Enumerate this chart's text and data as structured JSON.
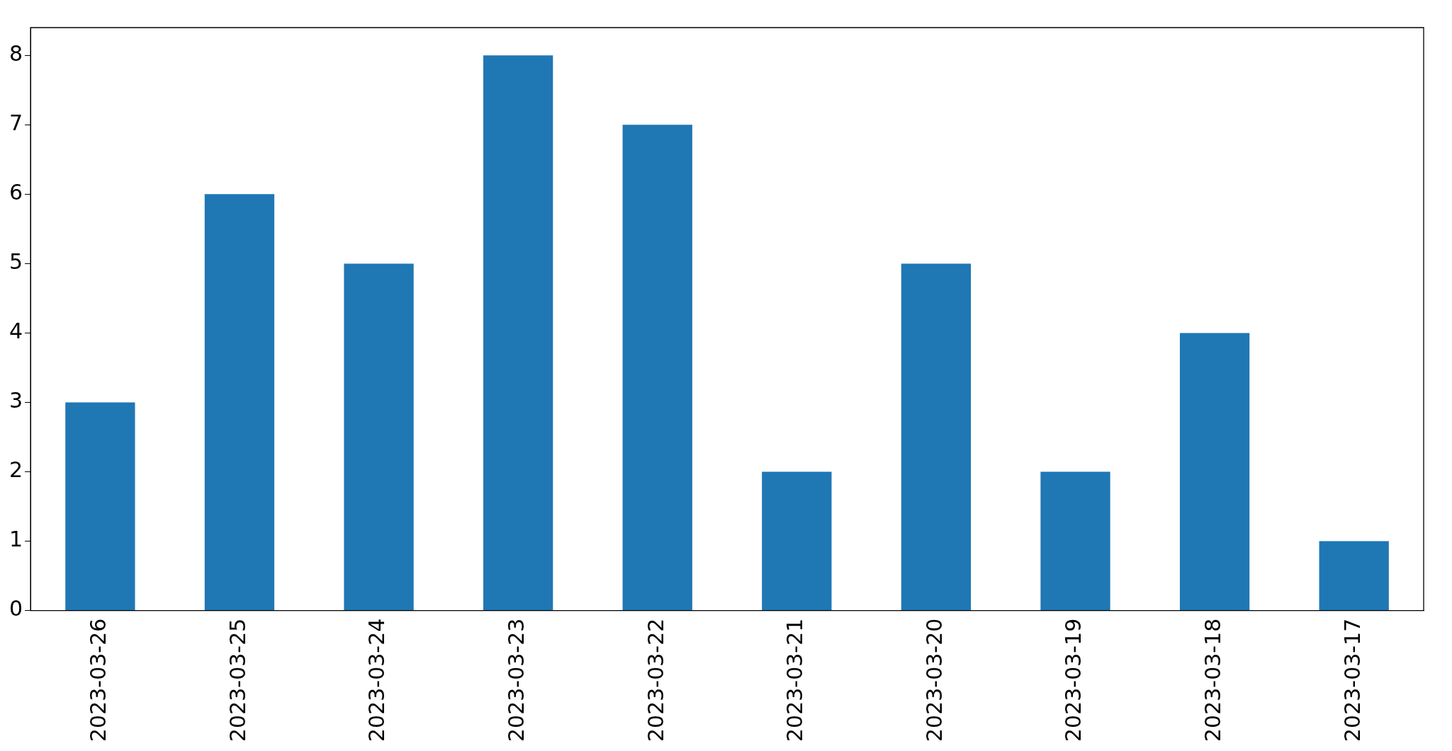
{
  "chart_data": {
    "type": "bar",
    "categories": [
      "2023-03-26",
      "2023-03-25",
      "2023-03-24",
      "2023-03-23",
      "2023-03-22",
      "2023-03-21",
      "2023-03-20",
      "2023-03-19",
      "2023-03-18",
      "2023-03-17"
    ],
    "values": [
      3,
      6,
      5,
      8,
      7,
      2,
      5,
      2,
      4,
      1
    ],
    "color": "#1f77b4",
    "ylim": [
      0,
      8.4
    ],
    "yticks": [
      0,
      1,
      2,
      3,
      4,
      5,
      6,
      7,
      8
    ],
    "grid": false,
    "legend": false
  }
}
